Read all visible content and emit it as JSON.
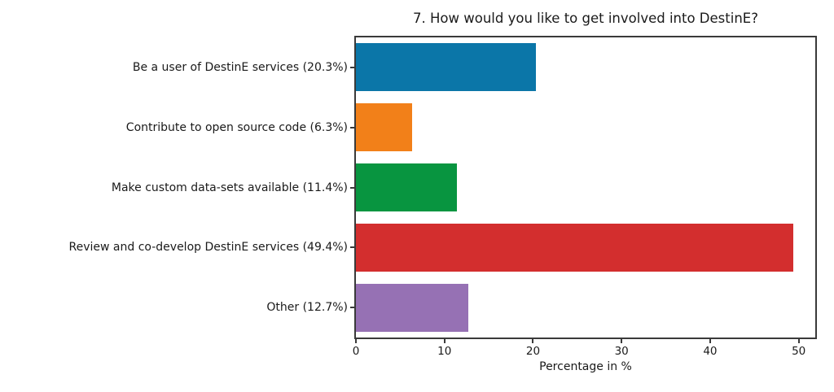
{
  "figure": {
    "title": "7. How would you like to get involved into DestinE?",
    "xlabel": "Percentage in %"
  },
  "chart_data": {
    "type": "bar",
    "orientation": "horizontal",
    "title": "7. How would you like to get involved into DestinE?",
    "xlabel": "Percentage in %",
    "ylabel": "",
    "categories": [
      "Be a user of DestinE services (20.3%)",
      "Contribute to open source code (6.3%)",
      "Make custom data-sets available (11.4%)",
      "Review and co-develop DestinE services (49.4%)",
      "Other (12.7%)"
    ],
    "values": [
      20.3,
      6.3,
      11.4,
      49.4,
      12.7
    ],
    "bar_colors": [
      "#0b76a8",
      "#f28019",
      "#089540",
      "#d32e2e",
      "#9671b4"
    ],
    "xticks": [
      0,
      10,
      20,
      30,
      40,
      50
    ],
    "xlim": [
      0,
      51.87
    ],
    "grid": false,
    "legend": "none",
    "frame": "box"
  },
  "style_colors": {
    "spine": "#3a3a3a",
    "text": "#1a1a1a",
    "background": "#ffffff"
  }
}
